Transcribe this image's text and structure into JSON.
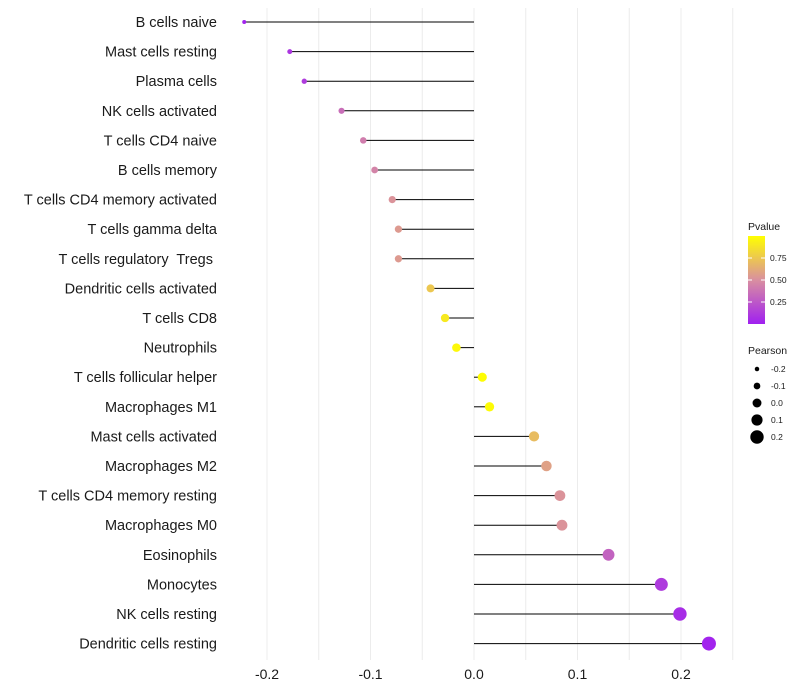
{
  "chart_data": {
    "type": "lollipop",
    "categories": [
      "B cells naive",
      "Mast cells resting",
      "Plasma cells",
      "NK cells activated",
      "T cells CD4 naive",
      "B cells memory",
      "T cells CD4 memory activated",
      "T cells gamma delta",
      "T cells regulatory  Tregs ",
      "Dendritic cells activated",
      "T cells CD8",
      "Neutrophils",
      "T cells follicular helper",
      "Macrophages M1",
      "Mast cells activated",
      "Macrophages M2",
      "T cells CD4 memory resting",
      "Macrophages M0",
      "Eosinophils",
      "Monocytes",
      "NK cells resting",
      "Dendritic cells resting"
    ],
    "pearson": [
      -0.222,
      -0.178,
      -0.164,
      -0.128,
      -0.107,
      -0.096,
      -0.079,
      -0.073,
      -0.073,
      -0.042,
      -0.028,
      -0.017,
      0.008,
      0.015,
      0.058,
      0.07,
      0.083,
      0.085,
      0.13,
      0.181,
      0.199,
      0.227
    ],
    "pvalue": [
      0.02,
      0.1,
      0.12,
      0.35,
      0.42,
      0.45,
      0.52,
      0.55,
      0.55,
      0.75,
      0.9,
      0.97,
      0.99,
      0.98,
      0.7,
      0.58,
      0.52,
      0.52,
      0.3,
      0.12,
      0.06,
      0.02
    ],
    "xlim": [
      -0.245,
      0.25
    ],
    "x_ticks": [
      -0.2,
      -0.1,
      0.0,
      0.1,
      0.2
    ],
    "x_tick_labels": [
      "-0.2",
      "-0.1",
      "0.0",
      "0.1",
      "0.2"
    ],
    "grid": true,
    "legend_pvalue": {
      "title": "Pvalue",
      "ticks": [
        0.25,
        0.5,
        0.75
      ],
      "tick_labels": [
        "0.25",
        "0.50",
        "0.75"
      ],
      "range": [
        0.0,
        1.0
      ],
      "color_low": "#a020f0",
      "color_mid": "#d98fa0",
      "color_high": "#ffff00"
    },
    "legend_pearson": {
      "title": "Pearson",
      "values": [
        -0.2,
        -0.1,
        0.0,
        0.1,
        0.2
      ],
      "labels": [
        "-0.2",
        "-0.1",
        "0.0",
        "0.1",
        "0.2"
      ]
    }
  }
}
